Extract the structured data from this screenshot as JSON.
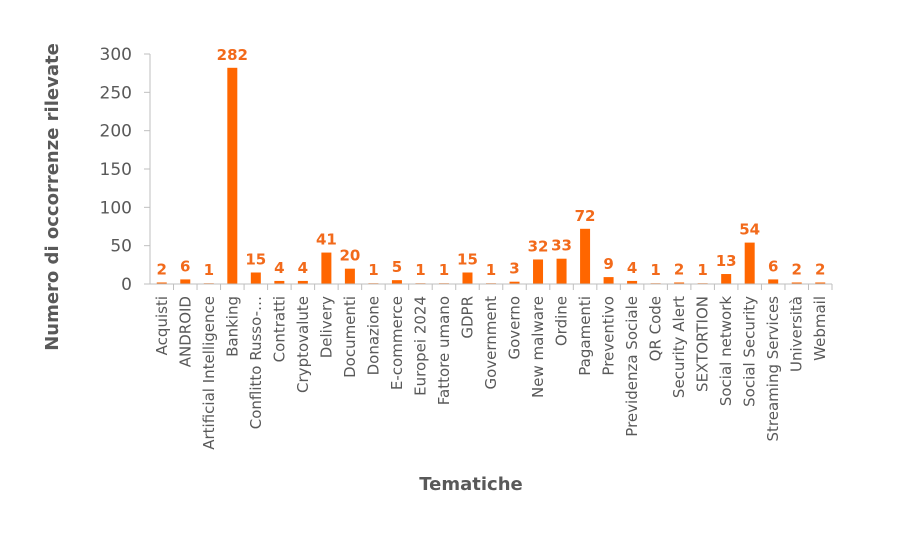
{
  "chart_data": {
    "type": "bar",
    "title": "",
    "xlabel": "Tematiche",
    "ylabel": "Numero di occorrenze rilevate",
    "ylim": [
      0,
      300
    ],
    "yticks": [
      "0",
      "50",
      "100",
      "150",
      "200",
      "250",
      "300"
    ],
    "categories": [
      "Acquisti",
      "ANDROID",
      "Artificial Intelligence",
      "Banking",
      "Conflitto Russo-…",
      "Contratti",
      "Cryptovalute",
      "Delivery",
      "Documenti",
      "Donazione",
      "E-commerce",
      "Europei 2024",
      "Fattore umano",
      "GDPR",
      "Government",
      "Governo",
      "New malware",
      "Ordine",
      "Pagamenti",
      "Preventivo",
      "Previdenza Sociale",
      "QR Code",
      "Security Alert",
      "SEXTORTION",
      "Social network",
      "Social Security",
      "Streaming Services",
      "Università",
      "Webmail"
    ],
    "values": [
      2,
      6,
      1,
      282,
      15,
      4,
      4,
      41,
      20,
      1,
      5,
      1,
      1,
      15,
      1,
      3,
      32,
      33,
      72,
      9,
      4,
      1,
      2,
      1,
      13,
      54,
      6,
      2,
      2
    ],
    "data_labels": [
      "2",
      "6",
      "1",
      "282",
      "15",
      "4",
      "4",
      "41",
      "20",
      "1",
      "5",
      "1",
      "1",
      "15",
      "1",
      "3",
      "32",
      "33",
      "72",
      "9",
      "4",
      "1",
      "2",
      "1",
      "13",
      "54",
      "6",
      "2",
      "2"
    ],
    "colors": {
      "bar": "#FF6600",
      "label": "#F26A1B",
      "axis": "#BFBFBF",
      "text": "#595959"
    }
  }
}
